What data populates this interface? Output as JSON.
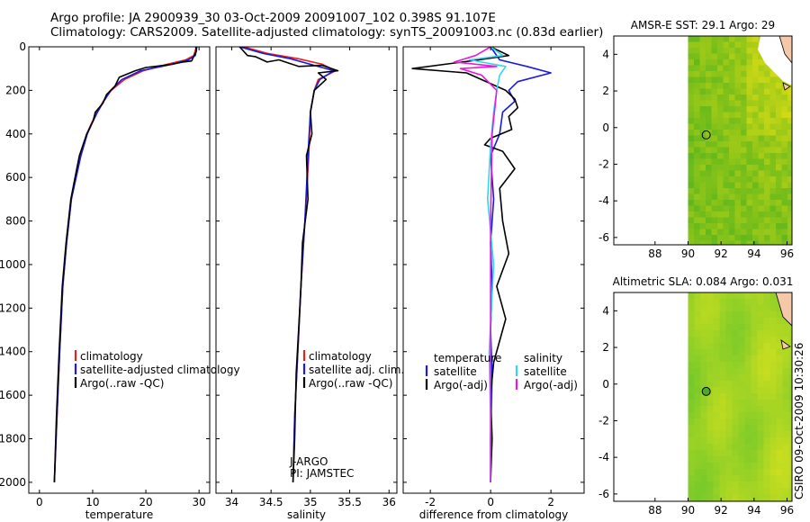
{
  "title_line1": "Argo profile: JA 2900939_30 03-Oct-2009 20091007_102 0.398S 91.107E",
  "title_line2": "Climatology: CARS2009. Satellite-adjusted climatology: synTS_20091003.nc (0.83d earlier)",
  "side_label": "CSIRO 09-Oct-2009 10:30:26",
  "colors": {
    "climatology": "#e8211d",
    "satellite": "#1a1ae0",
    "argo": "#000000",
    "sal_satellite": "#33d8e8",
    "sal_argo": "#e81ae0"
  },
  "chart_data": [
    {
      "type": "line",
      "xlabel": "temperature",
      "xlim": [
        -2,
        32
      ],
      "ylim": [
        0,
        2050
      ],
      "xticks": [
        0,
        10,
        20,
        30
      ],
      "yticks": [
        0,
        200,
        400,
        600,
        800,
        1000,
        1200,
        1400,
        1600,
        1800,
        2000
      ],
      "legend": [
        "climatology",
        "satellite-adjusted climatology",
        "Argo(..raw -QC)"
      ],
      "series": [
        {
          "name": "climatology",
          "color": "#e8211d",
          "x": [
            29.5,
            29.0,
            27.5,
            24.0,
            19.5,
            16.0,
            13.5,
            12.0,
            10.8,
            9.8,
            8.9,
            7.7,
            6.8,
            6.0,
            5.1,
            4.4,
            3.8,
            3.3,
            2.8
          ],
          "y": [
            0,
            40,
            60,
            80,
            110,
            150,
            200,
            250,
            300,
            350,
            400,
            500,
            600,
            700,
            900,
            1100,
            1400,
            1700,
            2000
          ]
        },
        {
          "name": "satellite-adjusted climatology",
          "color": "#1a1ae0",
          "x": [
            29.6,
            29.3,
            28.0,
            24.0,
            19.0,
            15.5,
            13.4,
            12.1,
            10.9,
            9.9,
            9.0,
            7.8,
            6.9,
            6.0,
            5.1,
            4.4,
            3.8,
            3.3,
            2.8
          ],
          "y": [
            0,
            40,
            60,
            85,
            110,
            150,
            200,
            250,
            300,
            350,
            400,
            500,
            600,
            700,
            900,
            1100,
            1400,
            1700,
            2000
          ]
        },
        {
          "name": "Argo(..raw -QC)",
          "color": "#000000",
          "x": [
            29.4,
            29.5,
            28.6,
            27.0,
            25.0,
            20.0,
            18.0,
            15.0,
            14.2,
            12.6,
            11.9,
            10.5,
            10.1,
            8.9,
            7.5,
            6.7,
            5.9,
            5.0,
            4.3,
            3.7,
            3.2,
            2.8
          ],
          "y": [
            0,
            20,
            65,
            70,
            80,
            95,
            110,
            140,
            180,
            220,
            260,
            300,
            340,
            400,
            500,
            600,
            700,
            900,
            1100,
            1400,
            1700,
            2000
          ]
        }
      ]
    },
    {
      "type": "line",
      "xlabel": "salinity",
      "xlim": [
        33.8,
        36.1
      ],
      "ylim": [
        0,
        2050
      ],
      "xticks": [
        34,
        34.5,
        35,
        35.5,
        36
      ],
      "yticks": [
        0,
        200,
        400,
        600,
        800,
        1000,
        1200,
        1400,
        1600,
        1800,
        2000
      ],
      "legend": [
        "climatology",
        "satellite adj. clim.",
        "Argo(..raw -QC)"
      ],
      "annotations": [
        "J-ARGO",
        "PI: JAMSTEC"
      ],
      "series": [
        {
          "name": "climatology",
          "color": "#e8211d",
          "x": [
            34.15,
            34.45,
            34.85,
            35.15,
            35.32,
            35.1,
            35.05,
            35.0,
            34.98,
            34.93,
            34.88,
            34.84,
            34.8,
            34.78
          ],
          "y": [
            0,
            30,
            55,
            80,
            110,
            150,
            200,
            300,
            500,
            800,
            1100,
            1400,
            1700,
            2000
          ]
        },
        {
          "name": "satellite adj. clim.",
          "color": "#1a1ae0",
          "x": [
            34.1,
            34.4,
            34.75,
            35.05,
            35.3,
            35.12,
            35.05,
            35.0,
            34.97,
            34.93,
            34.88,
            34.84,
            34.8,
            34.78
          ],
          "y": [
            0,
            30,
            55,
            85,
            110,
            150,
            200,
            300,
            500,
            800,
            1100,
            1400,
            1700,
            2000
          ]
        },
        {
          "name": "Argo(..raw -QC)",
          "color": "#000000",
          "x": [
            34.1,
            34.2,
            34.3,
            34.45,
            34.6,
            34.85,
            35.15,
            35.35,
            35.1,
            35.2,
            35.05,
            35.0,
            35.02,
            34.95,
            34.97,
            34.9,
            34.88,
            34.85,
            34.82,
            34.8,
            34.78
          ],
          "y": [
            0,
            40,
            45,
            70,
            60,
            90,
            85,
            110,
            120,
            150,
            200,
            300,
            400,
            500,
            700,
            900,
            1100,
            1300,
            1500,
            1800,
            2000
          ]
        }
      ]
    },
    {
      "type": "line",
      "xlabel": "difference from climatology",
      "xlim": [
        -2.9,
        3.1
      ],
      "ylim": [
        0,
        2050
      ],
      "xticks": [
        -2,
        0,
        2
      ],
      "yticks": [
        0,
        200,
        400,
        600,
        800,
        1000,
        1200,
        1400,
        1600,
        1800,
        2000
      ],
      "legend_groups": [
        {
          "heading": "temperature",
          "items": [
            "satellite",
            "Argo(-adj)"
          ]
        },
        {
          "heading": "salinity",
          "items": [
            "satellite",
            "Argo(-adj)"
          ]
        }
      ],
      "series": [
        {
          "name": "temperature satellite",
          "color": "#1a1ae0",
          "x": [
            0.0,
            0.3,
            1.2,
            2.0,
            0.9,
            0.6,
            0.8,
            0.4,
            0.3,
            0.0,
            0.1,
            0.0,
            0.05,
            0.0,
            0.05,
            0.0,
            0.0
          ],
          "y": [
            0,
            60,
            90,
            120,
            160,
            200,
            250,
            300,
            400,
            500,
            700,
            900,
            1100,
            1300,
            1500,
            1800,
            2000
          ]
        },
        {
          "name": "temperature Argo(-adj)",
          "color": "#000000",
          "x": [
            0.0,
            0.6,
            -0.4,
            -2.6,
            -0.8,
            0.5,
            0.8,
            0.9,
            0.6,
            0.7,
            0.0,
            -0.2,
            0.4,
            0.8,
            0.3,
            0.4,
            0.6,
            0.2,
            0.5,
            0.3,
            0.1,
            0.0,
            0.05,
            0.0
          ],
          "y": [
            0,
            40,
            60,
            100,
            120,
            200,
            240,
            280,
            320,
            380,
            420,
            450,
            480,
            560,
            650,
            800,
            950,
            1100,
            1250,
            1350,
            1450,
            1600,
            1800,
            2000
          ]
        },
        {
          "name": "salinity satellite",
          "color": "#33d8e8",
          "x": [
            0.0,
            0.4,
            -0.7,
            0.5,
            0.3,
            0.2,
            0.1,
            0.0,
            -0.1,
            0.1,
            -0.05,
            0.0,
            0.0
          ],
          "y": [
            0,
            40,
            60,
            90,
            130,
            200,
            300,
            450,
            700,
            1000,
            1400,
            1700,
            2000
          ]
        },
        {
          "name": "salinity Argo(-adj)",
          "color": "#e81ae0",
          "x": [
            0.0,
            -0.5,
            -1.2,
            0.2,
            -1.0,
            -0.3,
            0.2,
            0.05,
            0.0,
            0.0
          ],
          "y": [
            0,
            40,
            70,
            90,
            100,
            130,
            200,
            400,
            800,
            2000
          ]
        }
      ]
    },
    {
      "type": "heatmap",
      "title": "AMSR-E SST: 29.1 Argo: 29",
      "xlim": [
        85.5,
        96.3
      ],
      "ylim": [
        -6.4,
        5.0
      ],
      "xticks": [
        88,
        90,
        92,
        94,
        96
      ],
      "yticks": [
        -6,
        -4,
        -2,
        0,
        2,
        4
      ],
      "data_xrange": [
        90,
        96.3
      ],
      "marker": {
        "lon": 91.1,
        "lat": -0.4
      }
    },
    {
      "type": "heatmap",
      "title": "Altimetric SLA: 0.084 Argo: 0.031",
      "xlim": [
        85.5,
        96.3
      ],
      "ylim": [
        -6.4,
        5.0
      ],
      "xticks": [
        88,
        90,
        92,
        94,
        96
      ],
      "yticks": [
        -6,
        -4,
        -2,
        0,
        2,
        4
      ],
      "data_xrange": [
        90,
        96.3
      ],
      "marker": {
        "lon": 91.1,
        "lat": -0.4
      }
    }
  ]
}
